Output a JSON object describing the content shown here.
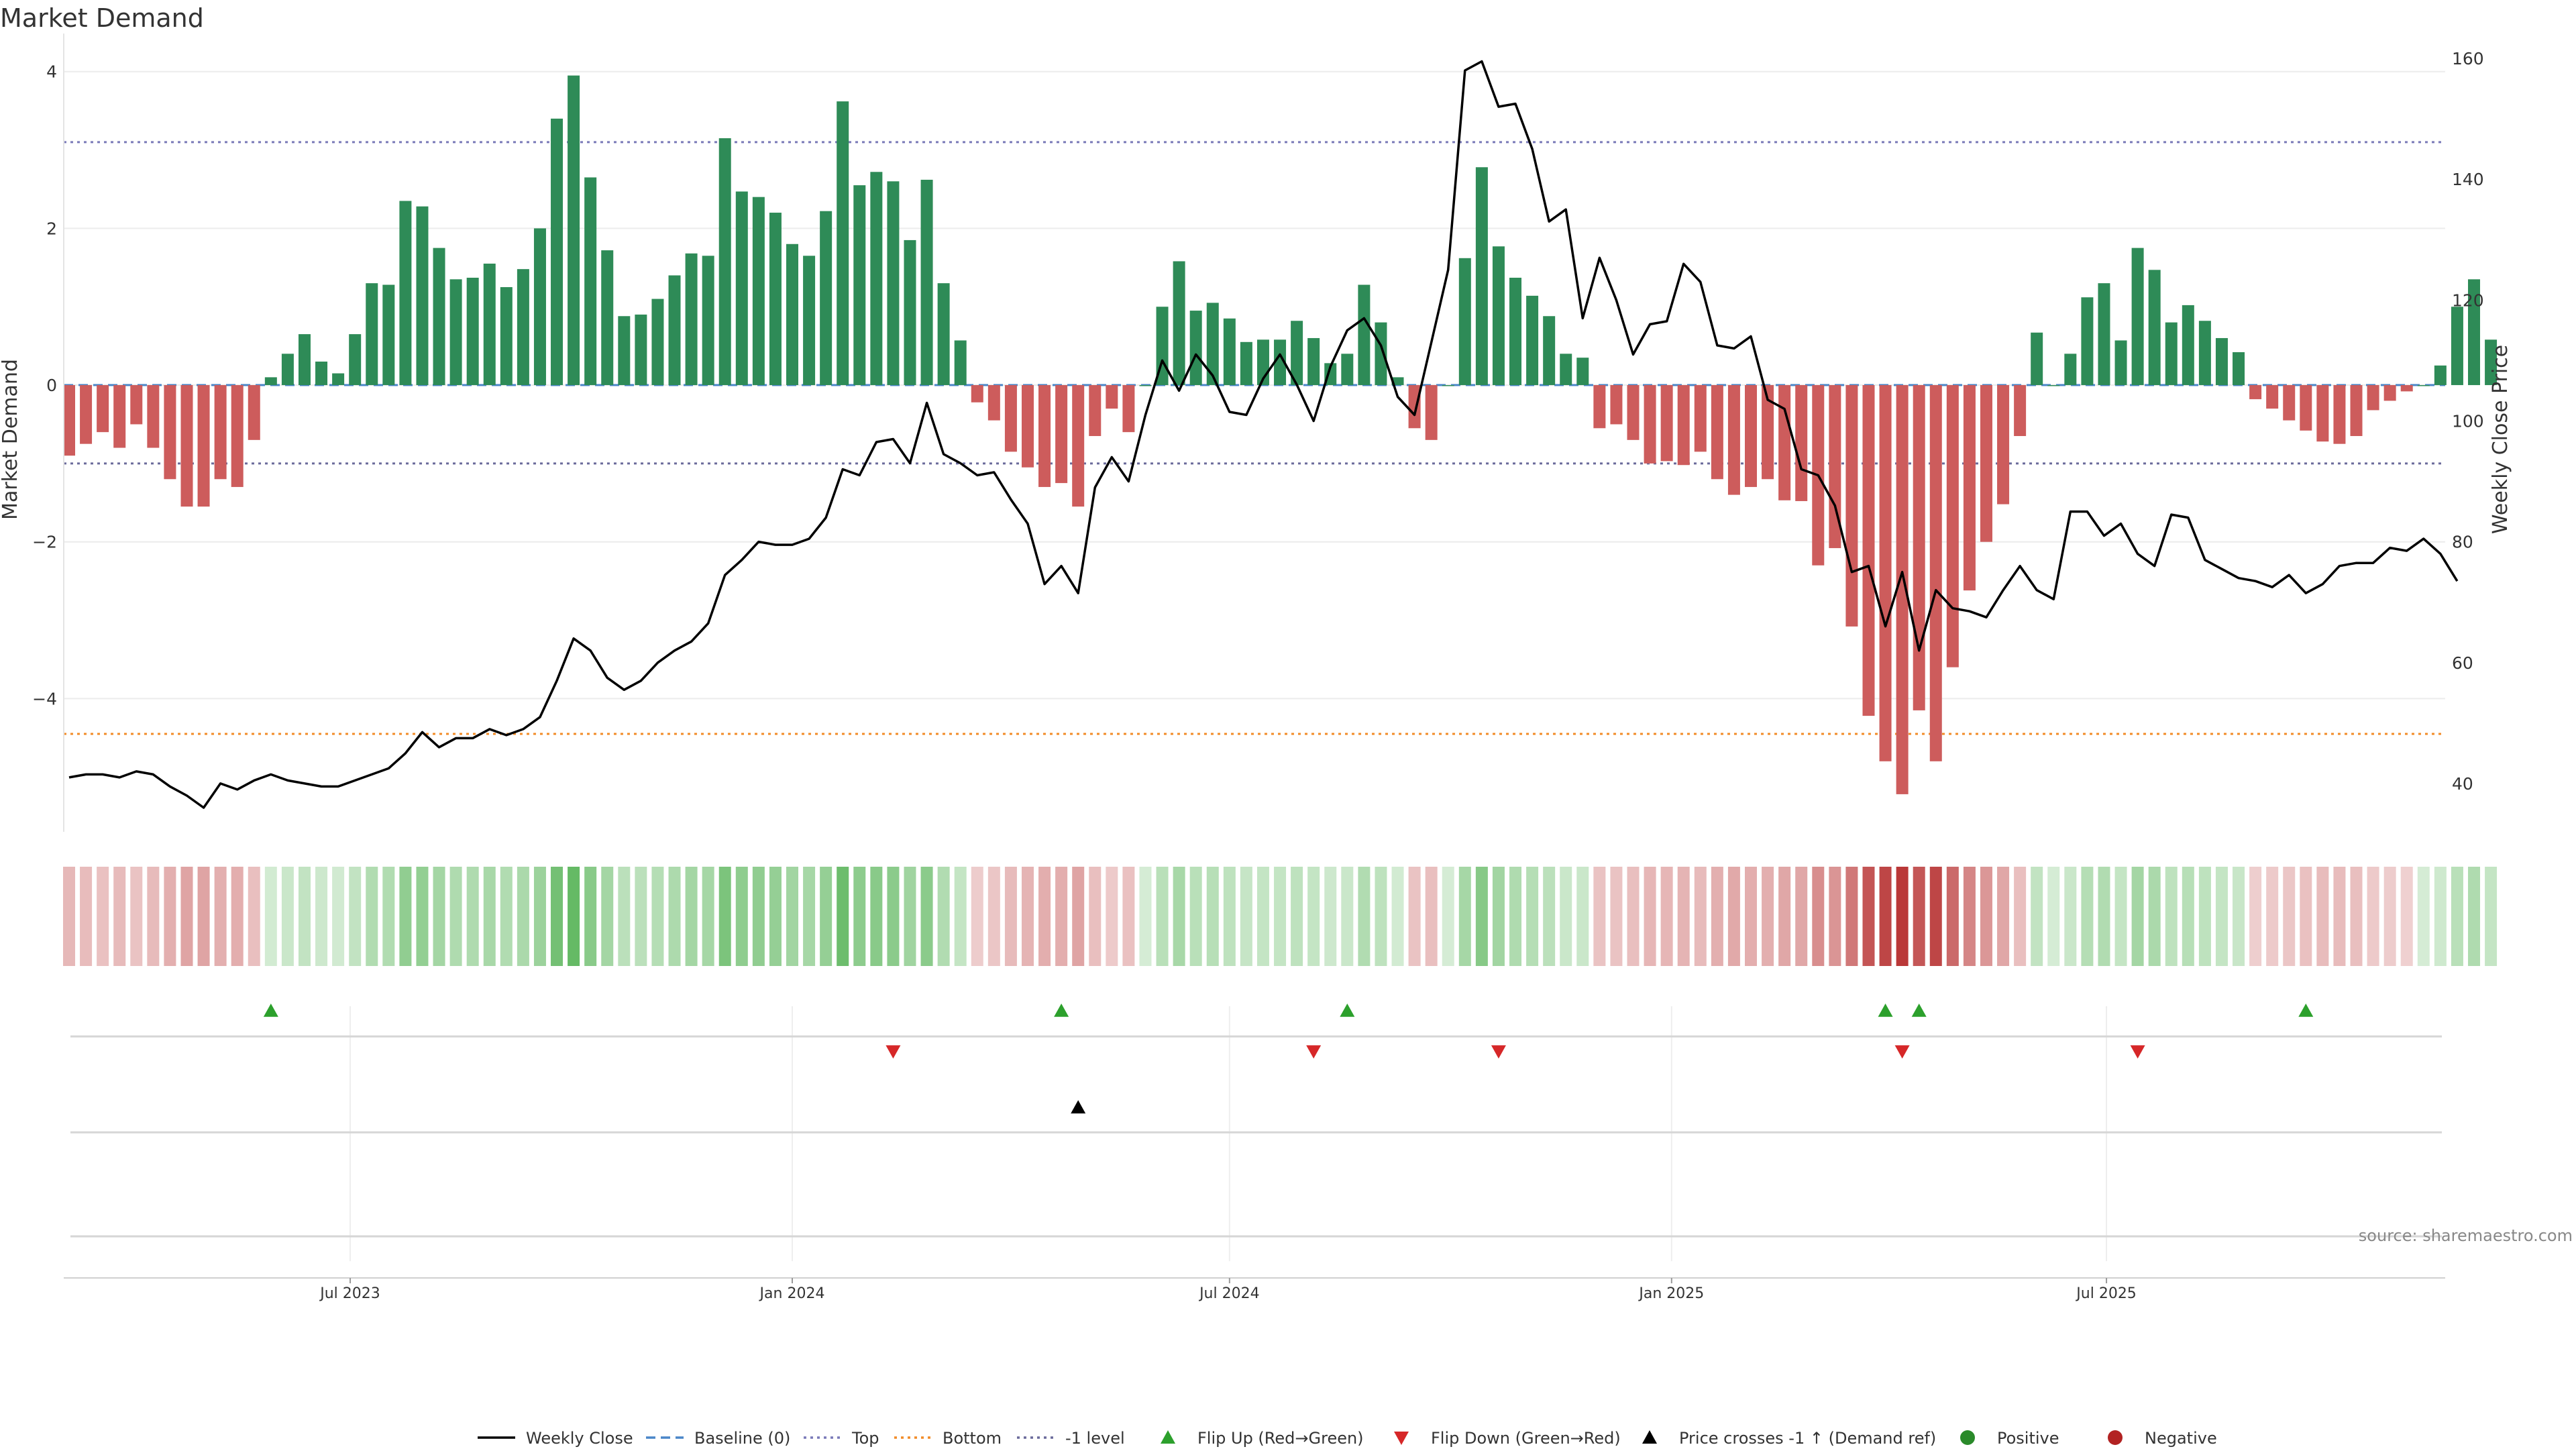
{
  "chart_data": {
    "type": "bar",
    "title": "Market Demand",
    "ylabel": "Market Demand",
    "y2label": "Weekly Close Price",
    "ylim": [
      -5.7,
      4.4
    ],
    "y2lim": [
      32,
      163
    ],
    "yticks": [
      4,
      2,
      0,
      -2,
      -4
    ],
    "y2ticks": [
      160,
      140,
      120,
      100,
      80,
      60,
      40
    ],
    "top_level": 3.1,
    "bottom_level": -4.45,
    "minus1_level": -1.0,
    "start_date": "2023-03-06",
    "x_date_ticks": [
      {
        "label": "Jul 2023",
        "date": "2023-07-01"
      },
      {
        "label": "Jan 2024",
        "date": "2024-01-01"
      },
      {
        "label": "Jul 2024",
        "date": "2024-07-01"
      },
      {
        "label": "Jan 2025",
        "date": "2025-01-01"
      },
      {
        "label": "Jul 2025",
        "date": "2025-07-01"
      }
    ],
    "demand": [
      -0.9,
      -0.75,
      -0.6,
      -0.8,
      -0.5,
      -0.8,
      -1.2,
      -1.55,
      -1.55,
      -1.2,
      -1.3,
      -0.7,
      0.1,
      0.4,
      0.65,
      0.3,
      0.15,
      0.65,
      1.3,
      1.28,
      2.35,
      2.28,
      1.75,
      1.35,
      1.37,
      1.55,
      1.25,
      1.48,
      2.0,
      3.4,
      3.95,
      2.65,
      1.72,
      0.88,
      0.9,
      1.1,
      1.4,
      1.68,
      1.65,
      3.15,
      2.47,
      2.4,
      2.2,
      1.8,
      1.65,
      2.22,
      3.62,
      2.55,
      2.72,
      2.6,
      1.85,
      2.62,
      1.3,
      0.57,
      -0.22,
      -0.45,
      -0.85,
      -1.05,
      -1.3,
      -1.25,
      -1.55,
      -0.65,
      -0.3,
      -0.6,
      0.0,
      1.0,
      1.58,
      0.95,
      1.05,
      0.85,
      0.55,
      0.58,
      0.58,
      0.82,
      0.6,
      0.28,
      0.4,
      1.28,
      0.8,
      0.1,
      -0.55,
      -0.7,
      0.0,
      1.62,
      2.78,
      1.77,
      1.37,
      1.14,
      0.88,
      0.4,
      0.35,
      -0.55,
      -0.5,
      -0.7,
      -1.0,
      -0.97,
      -1.02,
      -0.85,
      -1.2,
      -1.4,
      -1.3,
      -1.2,
      -1.47,
      -1.48,
      -2.3,
      -2.08,
      -3.08,
      -4.22,
      -4.8,
      -5.22,
      -4.15,
      -4.8,
      -3.6,
      -2.62,
      -2.0,
      -1.52,
      -0.65,
      0.67,
      0.0,
      0.4,
      1.12,
      1.3,
      0.57,
      1.75,
      1.47,
      0.8,
      1.02,
      0.82,
      0.6,
      0.42,
      -0.18,
      -0.3,
      -0.45,
      -0.58,
      -0.72,
      -0.75,
      -0.65,
      -0.32,
      -0.2,
      -0.08,
      0.0,
      0.25,
      1.0,
      1.35,
      0.58
    ],
    "price": [
      41,
      41.5,
      41.5,
      41,
      42,
      41.5,
      39.5,
      38,
      36,
      40,
      39,
      40.5,
      41.5,
      40.5,
      40,
      39.5,
      39.5,
      40.5,
      41.5,
      42.5,
      45,
      48.5,
      46,
      47.5,
      47.5,
      49,
      48,
      49,
      51,
      57,
      64,
      62,
      57.5,
      55.5,
      57,
      60,
      62,
      63.5,
      66.5,
      74.5,
      77,
      80,
      79.5,
      79.5,
      80.5,
      84,
      92,
      91,
      96.5,
      97,
      93,
      103,
      94.5,
      93,
      91,
      91.5,
      87,
      83,
      73,
      76,
      71.5,
      89,
      94,
      90,
      101,
      110,
      105,
      111,
      107.5,
      101.5,
      101,
      107,
      111,
      106,
      100,
      109,
      115,
      117,
      112.5,
      104,
      101,
      113,
      125,
      158,
      159.5,
      152,
      152.5,
      145,
      133,
      135,
      117,
      127,
      120,
      111,
      116,
      116.5,
      126,
      123,
      112.5,
      112,
      114,
      103.5,
      102,
      92,
      91,
      86,
      75,
      76,
      66,
      75,
      62,
      72,
      69,
      68.5,
      67.5,
      72,
      76,
      72,
      70.5,
      85,
      85,
      81,
      83,
      78,
      76,
      84.5,
      84,
      77,
      75.5,
      74,
      73.5,
      72.5,
      74.5,
      71.5,
      73,
      76,
      76.5,
      76.5,
      79,
      78.5,
      80.5,
      78,
      73.5
    ],
    "flip_up_dates": [
      "2023-05-29",
      "2024-04-22",
      "2024-08-19",
      "2025-03-31",
      "2025-04-14",
      "2025-09-22"
    ],
    "flip_down_dates": [
      "2024-02-12",
      "2024-08-05",
      "2024-10-21",
      "2025-04-07",
      "2025-07-14"
    ],
    "price_cross_dates": [
      "2024-04-29"
    ],
    "legend": [
      {
        "label": "Weekly Close",
        "type": "line-solid",
        "color": "#000000"
      },
      {
        "label": "Baseline (0)",
        "type": "line-dashed",
        "color": "#4a86c8"
      },
      {
        "label": "Top",
        "type": "line-dotted",
        "color": "#7a7ab8"
      },
      {
        "label": "Bottom",
        "type": "line-dotted",
        "color": "#f28c28"
      },
      {
        "label": "-1 level",
        "type": "line-dotted",
        "color": "#6b6b9b"
      },
      {
        "label": "Flip Up (Red→Green)",
        "type": "tri-up",
        "color": "#2ca02c"
      },
      {
        "label": "Flip Down (Green→Red)",
        "type": "tri-down",
        "color": "#d62728"
      },
      {
        "label": "Price crosses -1 ↑ (Demand ref)",
        "type": "tri-up",
        "color": "#000000"
      },
      {
        "label": "Positive",
        "type": "dot",
        "color": "#2a8a2a"
      },
      {
        "label": "Negative",
        "type": "dot",
        "color": "#b22222"
      }
    ],
    "source": "source: sharemaestro.com",
    "colors": {
      "positive": "#2e8b57",
      "negative": "#cd5c5c",
      "heat_positive": "#2ca02c",
      "heat_negative": "#b22222",
      "price_line": "#000000"
    }
  }
}
